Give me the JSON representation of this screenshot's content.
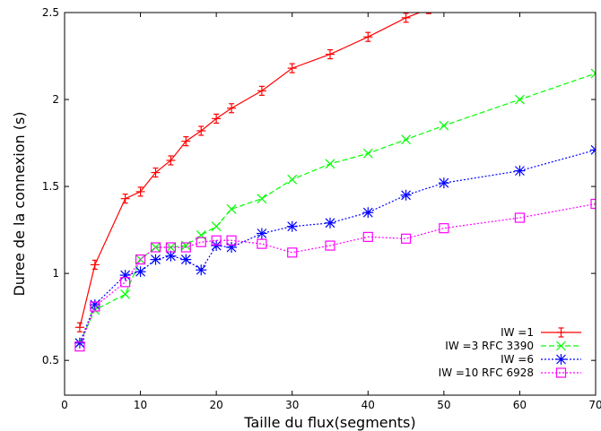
{
  "chart_data": {
    "type": "line",
    "title": "",
    "xlabel": "Taille du flux(segments)",
    "ylabel": "Duree de la connexion (s)",
    "xlim": [
      0,
      70
    ],
    "ylim": [
      0.3,
      2.5
    ],
    "xticks": [
      0,
      10,
      20,
      30,
      40,
      50,
      60,
      70
    ],
    "yticks": [
      0.5,
      1,
      1.5,
      2,
      2.5
    ],
    "xtick_labels": [
      "0",
      "10",
      "20",
      "30",
      "40",
      "50",
      "60",
      "70"
    ],
    "ytick_labels": [
      "0.5",
      "1",
      "1.5",
      "2",
      "2.5"
    ],
    "grid": false,
    "legend_position": "bottom-right",
    "series": [
      {
        "name": "IW =1",
        "color": "#ff0000",
        "line_style": "solid",
        "marker": "plus-errorbar",
        "x": [
          2,
          4,
          8,
          10,
          12,
          14,
          16,
          18,
          20,
          22,
          26,
          30,
          35,
          40,
          45,
          48
        ],
        "y": [
          0.69,
          1.05,
          1.43,
          1.47,
          1.58,
          1.65,
          1.76,
          1.82,
          1.89,
          1.95,
          2.05,
          2.18,
          2.26,
          2.36,
          2.47,
          2.52
        ]
      },
      {
        "name": "IW =3  RFC 3390",
        "color": "#00ff00",
        "line_style": "dashed",
        "marker": "x",
        "x": [
          2,
          4,
          8,
          10,
          12,
          14,
          16,
          18,
          20,
          22,
          26,
          30,
          35,
          40,
          45,
          50,
          60,
          70
        ],
        "y": [
          0.6,
          0.79,
          0.88,
          1.08,
          1.15,
          1.15,
          1.16,
          1.22,
          1.27,
          1.37,
          1.43,
          1.54,
          1.63,
          1.69,
          1.77,
          1.85,
          2.0,
          2.15
        ]
      },
      {
        "name": "IW =6",
        "color": "#0000ff",
        "line_style": "dotted",
        "marker": "asterisk",
        "x": [
          2,
          4,
          8,
          10,
          12,
          14,
          16,
          18,
          20,
          22,
          26,
          30,
          35,
          40,
          45,
          50,
          60,
          70
        ],
        "y": [
          0.6,
          0.82,
          0.99,
          1.01,
          1.08,
          1.1,
          1.08,
          1.02,
          1.16,
          1.15,
          1.23,
          1.27,
          1.29,
          1.35,
          1.45,
          1.52,
          1.59,
          1.71
        ]
      },
      {
        "name": "IW =10  RFC 6928",
        "color": "#ff00ff",
        "line_style": "dotted",
        "marker": "square",
        "x": [
          2,
          4,
          8,
          10,
          12,
          14,
          16,
          18,
          20,
          22,
          26,
          30,
          35,
          40,
          45,
          50,
          60,
          70
        ],
        "y": [
          0.58,
          0.81,
          0.95,
          1.08,
          1.15,
          1.15,
          1.15,
          1.18,
          1.19,
          1.19,
          1.17,
          1.12,
          1.16,
          1.21,
          1.2,
          1.26,
          1.32,
          1.4
        ]
      }
    ]
  }
}
